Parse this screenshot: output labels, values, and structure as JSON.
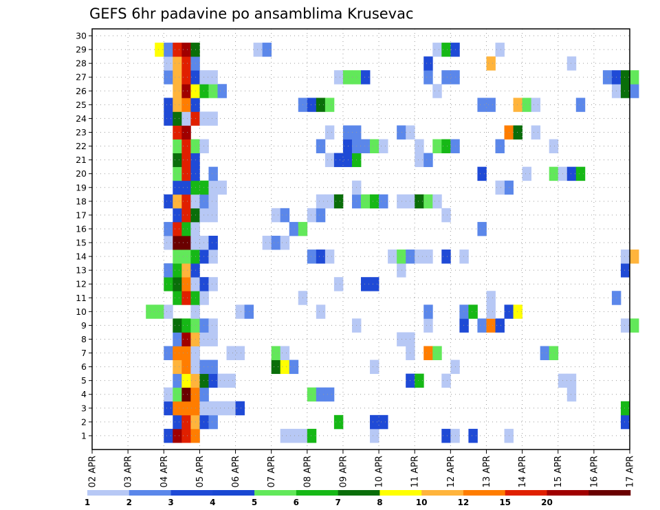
{
  "chart_data": {
    "type": "heatmap",
    "title": "GEFS 6hr padavine po ansamblima Krusevac",
    "xlabel": "",
    "ylabel": "",
    "x_tick_labels": [
      "02 APR",
      "03 APR",
      "04 APR",
      "05 APR",
      "06 APR",
      "07 APR",
      "08 APR",
      "09 APR",
      "10 APR",
      "11 APR",
      "12 APR",
      "13 APR",
      "14 APR",
      "15 APR",
      "16 APR",
      "17 APR"
    ],
    "x_range_steps": [
      0,
      60
    ],
    "members": [
      1,
      2,
      3,
      4,
      5,
      6,
      7,
      8,
      9,
      10,
      11,
      12,
      13,
      14,
      15,
      16,
      17,
      18,
      19,
      20,
      21,
      22,
      23,
      24,
      25,
      26,
      27,
      28,
      29,
      30
    ],
    "grid": true,
    "legend": {
      "position": "bottom",
      "thresholds": [
        "1",
        "2",
        "3",
        "4",
        "5",
        "6",
        "7",
        "8",
        "10",
        "12",
        "15",
        "20"
      ],
      "colors": [
        "#b7c8f5",
        "#5b87ea",
        "#1f4ad6",
        "#1947d2",
        "#62e85a",
        "#16b816",
        "#0a6e0a",
        "#ffff00",
        "#ffb43c",
        "#ff7d00",
        "#e02000",
        "#a00000",
        "#6a0000"
      ]
    },
    "cells": [
      [
        1,
        8,
        "#1f4ad6"
      ],
      [
        1,
        9,
        "#a00000"
      ],
      [
        1,
        10,
        "#e02000"
      ],
      [
        1,
        11,
        "#ff7d00"
      ],
      [
        1,
        21,
        "#b7c8f5"
      ],
      [
        1,
        22,
        "#b7c8f5"
      ],
      [
        1,
        23,
        "#b7c8f5"
      ],
      [
        1,
        24,
        "#16b816"
      ],
      [
        1,
        31,
        "#b7c8f5"
      ],
      [
        1,
        39,
        "#1f4ad6"
      ],
      [
        1,
        40,
        "#b7c8f5"
      ],
      [
        1,
        42,
        "#1f4ad6"
      ],
      [
        1,
        46,
        "#b7c8f5"
      ],
      [
        2,
        9,
        "#1f4ad6"
      ],
      [
        2,
        10,
        "#e02000"
      ],
      [
        2,
        11,
        "#ffb43c"
      ],
      [
        2,
        12,
        "#1f4ad6"
      ],
      [
        2,
        13,
        "#5b87ea"
      ],
      [
        2,
        27,
        "#16b816"
      ],
      [
        2,
        31,
        "#1f4ad6"
      ],
      [
        2,
        32,
        "#1f4ad6"
      ],
      [
        2,
        59,
        "#1f4ad6"
      ],
      [
        3,
        8,
        "#1f4ad6"
      ],
      [
        3,
        9,
        "#ff7d00"
      ],
      [
        3,
        10,
        "#ff7d00"
      ],
      [
        3,
        11,
        "#ff7d00"
      ],
      [
        3,
        12,
        "#b7c8f5"
      ],
      [
        3,
        13,
        "#b7c8f5"
      ],
      [
        3,
        14,
        "#b7c8f5"
      ],
      [
        3,
        15,
        "#b7c8f5"
      ],
      [
        3,
        16,
        "#1f4ad6"
      ],
      [
        3,
        59,
        "#16b816"
      ],
      [
        4,
        8,
        "#b7c8f5"
      ],
      [
        4,
        9,
        "#62e85a"
      ],
      [
        4,
        10,
        "#6a0000"
      ],
      [
        4,
        11,
        "#ff7d00"
      ],
      [
        4,
        12,
        "#5b87ea"
      ],
      [
        4,
        24,
        "#62e85a"
      ],
      [
        4,
        25,
        "#5b87ea"
      ],
      [
        4,
        26,
        "#5b87ea"
      ],
      [
        4,
        53,
        "#b7c8f5"
      ],
      [
        5,
        9,
        "#5b87ea"
      ],
      [
        5,
        10,
        "#ffff00"
      ],
      [
        5,
        11,
        "#ffb43c"
      ],
      [
        5,
        12,
        "#0a6e0a"
      ],
      [
        5,
        13,
        "#1f4ad6"
      ],
      [
        5,
        14,
        "#b7c8f5"
      ],
      [
        5,
        15,
        "#b7c8f5"
      ],
      [
        5,
        35,
        "#1f4ad6"
      ],
      [
        5,
        36,
        "#16b816"
      ],
      [
        5,
        39,
        "#b7c8f5"
      ],
      [
        5,
        52,
        "#b7c8f5"
      ],
      [
        5,
        53,
        "#b7c8f5"
      ],
      [
        6,
        9,
        "#ffb43c"
      ],
      [
        6,
        10,
        "#ff7d00"
      ],
      [
        6,
        11,
        "#b7c8f5"
      ],
      [
        6,
        12,
        "#5b87ea"
      ],
      [
        6,
        13,
        "#5b87ea"
      ],
      [
        6,
        20,
        "#0a6e0a"
      ],
      [
        6,
        21,
        "#ffff00"
      ],
      [
        6,
        22,
        "#5b87ea"
      ],
      [
        6,
        31,
        "#b7c8f5"
      ],
      [
        6,
        40,
        "#b7c8f5"
      ],
      [
        7,
        8,
        "#5b87ea"
      ],
      [
        7,
        9,
        "#ff7d00"
      ],
      [
        7,
        10,
        "#ff7d00"
      ],
      [
        7,
        11,
        "#b7c8f5"
      ],
      [
        7,
        15,
        "#b7c8f5"
      ],
      [
        7,
        16,
        "#b7c8f5"
      ],
      [
        7,
        20,
        "#62e85a"
      ],
      [
        7,
        21,
        "#b7c8f5"
      ],
      [
        7,
        35,
        "#b7c8f5"
      ],
      [
        7,
        37,
        "#ff7d00"
      ],
      [
        7,
        38,
        "#62e85a"
      ],
      [
        7,
        50,
        "#5b87ea"
      ],
      [
        7,
        51,
        "#62e85a"
      ],
      [
        8,
        9,
        "#5b87ea"
      ],
      [
        8,
        10,
        "#a00000"
      ],
      [
        8,
        11,
        "#ffb43c"
      ],
      [
        8,
        12,
        "#b7c8f5"
      ],
      [
        8,
        13,
        "#b7c8f5"
      ],
      [
        8,
        34,
        "#b7c8f5"
      ],
      [
        8,
        35,
        "#b7c8f5"
      ],
      [
        9,
        9,
        "#0a6e0a"
      ],
      [
        9,
        10,
        "#16b816"
      ],
      [
        9,
        11,
        "#62e85a"
      ],
      [
        9,
        12,
        "#5b87ea"
      ],
      [
        9,
        13,
        "#b7c8f5"
      ],
      [
        9,
        29,
        "#b7c8f5"
      ],
      [
        9,
        37,
        "#b7c8f5"
      ],
      [
        9,
        41,
        "#1f4ad6"
      ],
      [
        9,
        43,
        "#5b87ea"
      ],
      [
        9,
        44,
        "#ff7d00"
      ],
      [
        9,
        45,
        "#1f4ad6"
      ],
      [
        9,
        59,
        "#b7c8f5"
      ],
      [
        9,
        60,
        "#62e85a"
      ],
      [
        10,
        6,
        "#62e85a"
      ],
      [
        10,
        7,
        "#62e85a"
      ],
      [
        10,
        8,
        "#b7c8f5"
      ],
      [
        10,
        11,
        "#b7c8f5"
      ],
      [
        10,
        16,
        "#b7c8f5"
      ],
      [
        10,
        17,
        "#5b87ea"
      ],
      [
        10,
        25,
        "#b7c8f5"
      ],
      [
        10,
        37,
        "#5b87ea"
      ],
      [
        10,
        41,
        "#5b87ea"
      ],
      [
        10,
        42,
        "#16b816"
      ],
      [
        10,
        44,
        "#b7c8f5"
      ],
      [
        10,
        46,
        "#1f4ad6"
      ],
      [
        10,
        47,
        "#ffff00"
      ],
      [
        11,
        9,
        "#16b816"
      ],
      [
        11,
        10,
        "#e02000"
      ],
      [
        11,
        11,
        "#16b816"
      ],
      [
        11,
        12,
        "#b7c8f5"
      ],
      [
        11,
        23,
        "#b7c8f5"
      ],
      [
        11,
        44,
        "#b7c8f5"
      ],
      [
        11,
        58,
        "#5b87ea"
      ],
      [
        12,
        8,
        "#16b816"
      ],
      [
        12,
        9,
        "#0a6e0a"
      ],
      [
        12,
        10,
        "#ff7d00"
      ],
      [
        12,
        11,
        "#b7c8f5"
      ],
      [
        12,
        12,
        "#1f4ad6"
      ],
      [
        12,
        13,
        "#b7c8f5"
      ],
      [
        12,
        27,
        "#b7c8f5"
      ],
      [
        12,
        30,
        "#1f4ad6"
      ],
      [
        12,
        31,
        "#1f4ad6"
      ],
      [
        13,
        8,
        "#5b87ea"
      ],
      [
        13,
        9,
        "#16b816"
      ],
      [
        13,
        10,
        "#ffb43c"
      ],
      [
        13,
        11,
        "#1f4ad6"
      ],
      [
        13,
        34,
        "#b7c8f5"
      ],
      [
        13,
        59,
        "#1f4ad6"
      ],
      [
        14,
        9,
        "#62e85a"
      ],
      [
        14,
        10,
        "#62e85a"
      ],
      [
        14,
        11,
        "#16b816"
      ],
      [
        14,
        12,
        "#1f4ad6"
      ],
      [
        14,
        13,
        "#b7c8f5"
      ],
      [
        14,
        24,
        "#5b87ea"
      ],
      [
        14,
        25,
        "#1f4ad6"
      ],
      [
        14,
        26,
        "#b7c8f5"
      ],
      [
        14,
        33,
        "#b7c8f5"
      ],
      [
        14,
        34,
        "#62e85a"
      ],
      [
        14,
        35,
        "#5b87ea"
      ],
      [
        14,
        36,
        "#b7c8f5"
      ],
      [
        14,
        37,
        "#b7c8f5"
      ],
      [
        14,
        39,
        "#1f4ad6"
      ],
      [
        14,
        41,
        "#b7c8f5"
      ],
      [
        14,
        59,
        "#b7c8f5"
      ],
      [
        14,
        60,
        "#ffb43c"
      ],
      [
        15,
        8,
        "#b7c8f5"
      ],
      [
        15,
        9,
        "#6a0000"
      ],
      [
        15,
        10,
        "#6a0000"
      ],
      [
        15,
        11,
        "#b7c8f5"
      ],
      [
        15,
        12,
        "#b7c8f5"
      ],
      [
        15,
        13,
        "#1f4ad6"
      ],
      [
        15,
        19,
        "#b7c8f5"
      ],
      [
        15,
        20,
        "#5b87ea"
      ],
      [
        15,
        21,
        "#b7c8f5"
      ],
      [
        16,
        8,
        "#5b87ea"
      ],
      [
        16,
        9,
        "#e02000"
      ],
      [
        16,
        10,
        "#16b816"
      ],
      [
        16,
        11,
        "#b7c8f5"
      ],
      [
        16,
        22,
        "#5b87ea"
      ],
      [
        16,
        23,
        "#62e85a"
      ],
      [
        16,
        43,
        "#5b87ea"
      ],
      [
        17,
        9,
        "#1f4ad6"
      ],
      [
        17,
        10,
        "#e02000"
      ],
      [
        17,
        11,
        "#0a6e0a"
      ],
      [
        17,
        12,
        "#b7c8f5"
      ],
      [
        17,
        13,
        "#b7c8f5"
      ],
      [
        17,
        20,
        "#b7c8f5"
      ],
      [
        17,
        21,
        "#5b87ea"
      ],
      [
        17,
        24,
        "#b7c8f5"
      ],
      [
        17,
        25,
        "#5b87ea"
      ],
      [
        17,
        39,
        "#b7c8f5"
      ],
      [
        18,
        8,
        "#1f4ad6"
      ],
      [
        18,
        9,
        "#ffb43c"
      ],
      [
        18,
        10,
        "#e02000"
      ],
      [
        18,
        11,
        "#b7c8f5"
      ],
      [
        18,
        12,
        "#5b87ea"
      ],
      [
        18,
        13,
        "#b7c8f5"
      ],
      [
        18,
        25,
        "#b7c8f5"
      ],
      [
        18,
        26,
        "#b7c8f5"
      ],
      [
        18,
        27,
        "#0a6e0a"
      ],
      [
        18,
        29,
        "#5b87ea"
      ],
      [
        18,
        30,
        "#62e85a"
      ],
      [
        18,
        31,
        "#16b816"
      ],
      [
        18,
        32,
        "#5b87ea"
      ],
      [
        18,
        34,
        "#b7c8f5"
      ],
      [
        18,
        35,
        "#b7c8f5"
      ],
      [
        18,
        36,
        "#0a6e0a"
      ],
      [
        18,
        37,
        "#62e85a"
      ],
      [
        18,
        38,
        "#b7c8f5"
      ],
      [
        19,
        9,
        "#1f4ad6"
      ],
      [
        19,
        10,
        "#1f4ad6"
      ],
      [
        19,
        11,
        "#16b816"
      ],
      [
        19,
        12,
        "#16b816"
      ],
      [
        19,
        13,
        "#b7c8f5"
      ],
      [
        19,
        14,
        "#b7c8f5"
      ],
      [
        19,
        29,
        "#b7c8f5"
      ],
      [
        19,
        46,
        "#5b87ea"
      ],
      [
        19,
        45,
        "#b7c8f5"
      ],
      [
        20,
        9,
        "#62e85a"
      ],
      [
        20,
        10,
        "#e02000"
      ],
      [
        20,
        11,
        "#1f4ad6"
      ],
      [
        20,
        13,
        "#5b87ea"
      ],
      [
        20,
        43,
        "#1f4ad6"
      ],
      [
        20,
        48,
        "#b7c8f5"
      ],
      [
        20,
        51,
        "#62e85a"
      ],
      [
        20,
        52,
        "#b7c8f5"
      ],
      [
        20,
        53,
        "#1f4ad6"
      ],
      [
        20,
        54,
        "#16b816"
      ],
      [
        21,
        9,
        "#0a6e0a"
      ],
      [
        21,
        10,
        "#e02000"
      ],
      [
        21,
        11,
        "#1f4ad6"
      ],
      [
        21,
        26,
        "#b7c8f5"
      ],
      [
        21,
        27,
        "#1f4ad6"
      ],
      [
        21,
        28,
        "#1f4ad6"
      ],
      [
        21,
        29,
        "#16b816"
      ],
      [
        21,
        36,
        "#b7c8f5"
      ],
      [
        21,
        37,
        "#5b87ea"
      ],
      [
        22,
        9,
        "#62e85a"
      ],
      [
        22,
        10,
        "#e02000"
      ],
      [
        22,
        11,
        "#62e85a"
      ],
      [
        22,
        12,
        "#b7c8f5"
      ],
      [
        22,
        25,
        "#5b87ea"
      ],
      [
        22,
        28,
        "#1f4ad6"
      ],
      [
        22,
        29,
        "#5b87ea"
      ],
      [
        22,
        30,
        "#5b87ea"
      ],
      [
        22,
        31,
        "#62e85a"
      ],
      [
        22,
        32,
        "#b7c8f5"
      ],
      [
        22,
        36,
        "#b7c8f5"
      ],
      [
        22,
        38,
        "#62e85a"
      ],
      [
        22,
        39,
        "#16b816"
      ],
      [
        22,
        40,
        "#5b87ea"
      ],
      [
        22,
        45,
        "#5b87ea"
      ],
      [
        22,
        51,
        "#b7c8f5"
      ],
      [
        23,
        9,
        "#e02000"
      ],
      [
        23,
        10,
        "#a00000"
      ],
      [
        23,
        26,
        "#b7c8f5"
      ],
      [
        23,
        28,
        "#5b87ea"
      ],
      [
        23,
        29,
        "#5b87ea"
      ],
      [
        23,
        34,
        "#5b87ea"
      ],
      [
        23,
        35,
        "#b7c8f5"
      ],
      [
        23,
        46,
        "#ff7d00"
      ],
      [
        23,
        47,
        "#0a6e0a"
      ],
      [
        23,
        49,
        "#b7c8f5"
      ],
      [
        24,
        8,
        "#1f4ad6"
      ],
      [
        24,
        9,
        "#0a6e0a"
      ],
      [
        24,
        10,
        "#b7c8f5"
      ],
      [
        24,
        11,
        "#e02000"
      ],
      [
        24,
        12,
        "#b7c8f5"
      ],
      [
        24,
        13,
        "#b7c8f5"
      ],
      [
        25,
        8,
        "#1f4ad6"
      ],
      [
        25,
        9,
        "#ffb43c"
      ],
      [
        25,
        10,
        "#ff7d00"
      ],
      [
        25,
        11,
        "#1f4ad6"
      ],
      [
        25,
        23,
        "#5b87ea"
      ],
      [
        25,
        24,
        "#1f4ad6"
      ],
      [
        25,
        25,
        "#0a6e0a"
      ],
      [
        25,
        26,
        "#62e85a"
      ],
      [
        25,
        43,
        "#5b87ea"
      ],
      [
        25,
        44,
        "#5b87ea"
      ],
      [
        25,
        47,
        "#ffb43c"
      ],
      [
        25,
        48,
        "#62e85a"
      ],
      [
        25,
        49,
        "#b7c8f5"
      ],
      [
        25,
        54,
        "#5b87ea"
      ],
      [
        26,
        9,
        "#ffb43c"
      ],
      [
        26,
        10,
        "#a00000"
      ],
      [
        26,
        11,
        "#ffff00"
      ],
      [
        26,
        12,
        "#16b816"
      ],
      [
        26,
        13,
        "#62e85a"
      ],
      [
        26,
        14,
        "#5b87ea"
      ],
      [
        26,
        38,
        "#b7c8f5"
      ],
      [
        26,
        58,
        "#b7c8f5"
      ],
      [
        26,
        59,
        "#0a6e0a"
      ],
      [
        26,
        60,
        "#5b87ea"
      ],
      [
        27,
        8,
        "#5b87ea"
      ],
      [
        27,
        9,
        "#ffb43c"
      ],
      [
        27,
        10,
        "#e02000"
      ],
      [
        27,
        11,
        "#1f4ad6"
      ],
      [
        27,
        12,
        "#b7c8f5"
      ],
      [
        27,
        13,
        "#b7c8f5"
      ],
      [
        27,
        27,
        "#b7c8f5"
      ],
      [
        27,
        28,
        "#62e85a"
      ],
      [
        27,
        29,
        "#62e85a"
      ],
      [
        27,
        30,
        "#1f4ad6"
      ],
      [
        27,
        37,
        "#5b87ea"
      ],
      [
        27,
        39,
        "#5b87ea"
      ],
      [
        27,
        40,
        "#5b87ea"
      ],
      [
        27,
        57,
        "#5b87ea"
      ],
      [
        27,
        58,
        "#1f4ad6"
      ],
      [
        27,
        59,
        "#0a6e0a"
      ],
      [
        27,
        60,
        "#62e85a"
      ],
      [
        28,
        8,
        "#b7c8f5"
      ],
      [
        28,
        9,
        "#ffb43c"
      ],
      [
        28,
        10,
        "#e02000"
      ],
      [
        28,
        11,
        "#5b87ea"
      ],
      [
        28,
        37,
        "#1f4ad6"
      ],
      [
        28,
        44,
        "#ffb43c"
      ],
      [
        28,
        53,
        "#b7c8f5"
      ],
      [
        29,
        7,
        "#ffff00"
      ],
      [
        29,
        8,
        "#5b87ea"
      ],
      [
        29,
        9,
        "#e02000"
      ],
      [
        29,
        10,
        "#a00000"
      ],
      [
        29,
        11,
        "#0a6e0a"
      ],
      [
        29,
        18,
        "#b7c8f5"
      ],
      [
        29,
        19,
        "#5b87ea"
      ],
      [
        29,
        38,
        "#b7c8f5"
      ],
      [
        29,
        39,
        "#16b816"
      ],
      [
        29,
        40,
        "#1f4ad6"
      ],
      [
        29,
        45,
        "#b7c8f5"
      ]
    ]
  }
}
